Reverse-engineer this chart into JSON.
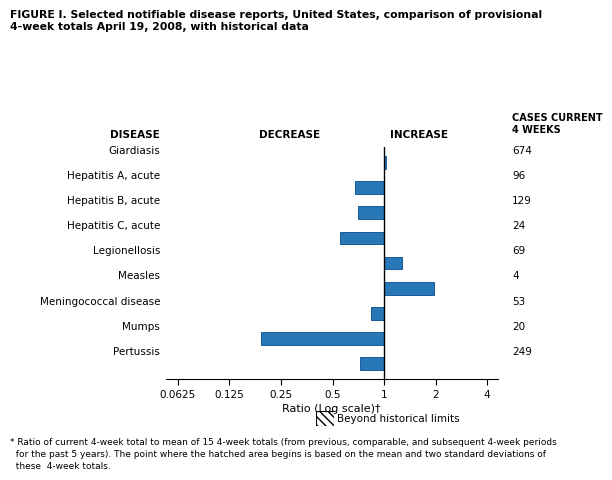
{
  "title": "FIGURE I. Selected notifiable disease reports, United States, comparison of provisional\n4-week totals April 19, 2008, with historical data",
  "diseases": [
    "Giardiasis",
    "Hepatitis A, acute",
    "Hepatitis B, acute",
    "Hepatitis C, acute",
    "Legionellosis",
    "Measles",
    "Meningococcal disease",
    "Mumps",
    "Pertussis"
  ],
  "ratios": [
    1.02,
    0.68,
    0.7,
    0.55,
    1.28,
    1.95,
    0.84,
    0.19,
    0.72
  ],
  "cases": [
    674,
    96,
    129,
    24,
    69,
    4,
    53,
    20,
    249
  ],
  "bar_color": "#2878b8",
  "bar_edge_color": "#1a5a96",
  "xticks": [
    0.0625,
    0.125,
    0.25,
    0.5,
    1.0,
    2.0,
    4.0
  ],
  "xticklabels": [
    "0.0625",
    "0.125",
    "0.25",
    "0.5",
    "1",
    "2",
    "4"
  ],
  "xlabel": "Ratio (Log scale)†",
  "col_disease": "DISEASE",
  "col_decrease": "DECREASE",
  "col_increase": "INCREASE",
  "col_cases": "CASES CURRENT\n4 WEEKS",
  "footnote": "* Ratio of current 4-week total to mean of 15 4-week totals (from previous, comparable, and subsequent 4-week periods\n  for the past 5 years). The point where the hatched area begins is based on the mean and two standard deviations of\n  these  4-week totals.",
  "legend_label": "Beyond historical limits",
  "background_color": "#ffffff"
}
